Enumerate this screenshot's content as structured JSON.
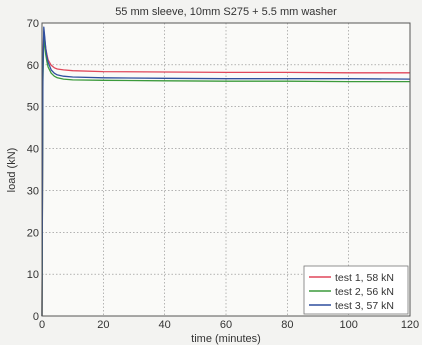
{
  "chart_data": {
    "type": "line",
    "title": "55 mm sleeve, 10mm S275 + 5.5 mm washer",
    "xlabel": "time (minutes)",
    "ylabel": "load (kN)",
    "xlim": [
      0,
      120
    ],
    "ylim": [
      0,
      70
    ],
    "xticks": [
      0,
      20,
      40,
      60,
      80,
      100,
      120
    ],
    "yticks": [
      0,
      10,
      20,
      30,
      40,
      50,
      60,
      70
    ],
    "grid": true,
    "legend_position": "bottom-right",
    "series": [
      {
        "name": "test 1, 58 kN",
        "color": "#e0475a",
        "x": [
          0,
          0.3,
          0.6,
          0.9,
          1.2,
          1.6,
          2,
          3,
          4,
          5,
          7,
          10,
          20,
          40,
          60,
          80,
          100,
          120
        ],
        "y": [
          0,
          60,
          68,
          66,
          64,
          62.5,
          61.2,
          59.9,
          59.3,
          59.0,
          58.8,
          58.6,
          58.4,
          58.3,
          58.2,
          58.2,
          58.1,
          58.1
        ]
      },
      {
        "name": "test 2, 56 kN",
        "color": "#3b9a3b",
        "x": [
          0,
          0.3,
          0.6,
          0.9,
          1.2,
          1.6,
          2,
          3,
          4,
          5,
          7,
          10,
          20,
          40,
          60,
          80,
          100,
          120
        ],
        "y": [
          0,
          56,
          67,
          64.5,
          62.5,
          60.8,
          59.5,
          58.0,
          57.3,
          56.9,
          56.6,
          56.4,
          56.3,
          56.2,
          56.1,
          56.1,
          56.0,
          56.0
        ]
      },
      {
        "name": "test 3, 57 kN",
        "color": "#2f4f9e",
        "x": [
          0,
          0.3,
          0.6,
          0.9,
          1.2,
          1.6,
          2,
          3,
          4,
          5,
          7,
          10,
          20,
          40,
          60,
          80,
          100,
          120
        ],
        "y": [
          0,
          58,
          69,
          66.5,
          64,
          62,
          60.6,
          58.8,
          58.0,
          57.6,
          57.3,
          57.1,
          56.9,
          56.8,
          56.7,
          56.7,
          56.7,
          56.6
        ]
      }
    ]
  }
}
